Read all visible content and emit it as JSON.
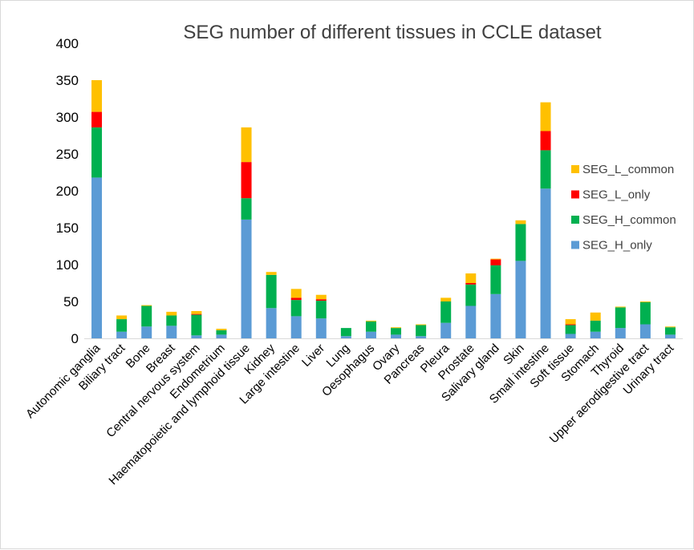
{
  "chart_data": {
    "type": "bar",
    "stacked": true,
    "title": "SEG number of different tissues in CCLE dataset",
    "xlabel": "",
    "ylabel": "",
    "ylim": [
      0,
      400
    ],
    "yticks": [
      0,
      50,
      100,
      150,
      200,
      250,
      300,
      350,
      400
    ],
    "grid": false,
    "legend_position": "right",
    "categories": [
      "Autonomic ganglia",
      "Biliary tract",
      "Bone",
      "Breast",
      "Central nervous system",
      "Endometrium",
      "Haematopoietic and lymphoid tissue",
      "Kidney",
      "Large intestine",
      "Liver",
      "Lung",
      "Oesophagus",
      "Ovary",
      "Pancreas",
      "Pleura",
      "Prostate",
      "Salivary gland",
      "Skin",
      "Small intestine",
      "Soft tissue",
      "Stomach",
      "Thyroid",
      "Upper aerodigestive tract",
      "Urinary tract"
    ],
    "series": [
      {
        "name": "SEG_H_only",
        "color": "#5b9bd5",
        "values": [
          218,
          9,
          16,
          17,
          4,
          5,
          161,
          41,
          30,
          27,
          3,
          9,
          5,
          3,
          21,
          44,
          60,
          105,
          203,
          6,
          9,
          14,
          19,
          5
        ]
      },
      {
        "name": "SEG_H_common",
        "color": "#00b050",
        "values": [
          68,
          17,
          28,
          14,
          28,
          6,
          29,
          45,
          22,
          24,
          11,
          14,
          9,
          15,
          29,
          29,
          39,
          50,
          52,
          12,
          15,
          28,
          30,
          10
        ]
      },
      {
        "name": "SEG_L_only",
        "color": "#ff0000",
        "values": [
          21,
          0,
          0,
          0,
          1,
          0,
          49,
          0,
          3,
          2,
          0,
          0,
          0,
          0,
          0,
          2,
          8,
          0,
          26,
          1,
          0,
          0,
          0,
          0
        ]
      },
      {
        "name": "SEG_L_common",
        "color": "#ffc000",
        "values": [
          43,
          5,
          1,
          5,
          4,
          2,
          47,
          4,
          12,
          6,
          0,
          1,
          1,
          1,
          5,
          13,
          1,
          5,
          39,
          7,
          11,
          1,
          1,
          1
        ]
      }
    ]
  }
}
